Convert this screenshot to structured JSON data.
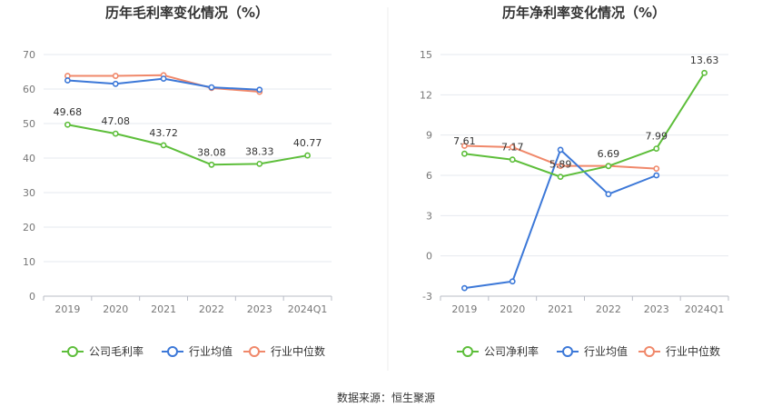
{
  "source_label": "数据来源：恒生聚源",
  "colors": {
    "company": "#5dbe3a",
    "industry_avg": "#3c78d8",
    "industry_median": "#f0886a",
    "grid": "#e6e9ef",
    "axis": "#b8bcc6"
  },
  "chart_data": [
    {
      "type": "line",
      "title": "历年毛利率变化情况（%）",
      "categories": [
        "2019",
        "2020",
        "2021",
        "2022",
        "2023",
        "2024Q1"
      ],
      "ylim": [
        0,
        70
      ],
      "yticks": [
        0,
        10,
        20,
        30,
        40,
        50,
        60,
        70
      ],
      "grid": true,
      "legend_position": "bottom",
      "series": [
        {
          "name": "公司毛利率",
          "key": "company",
          "values": [
            49.68,
            47.08,
            43.72,
            38.08,
            38.33,
            40.77
          ],
          "labels": [
            "49.68",
            "47.08",
            "43.72",
            "38.08",
            "38.33",
            "40.77"
          ]
        },
        {
          "name": "行业均值",
          "key": "industry_avg",
          "values": [
            62.5,
            61.5,
            63.0,
            60.5,
            59.8,
            null
          ]
        },
        {
          "name": "行业中位数",
          "key": "industry_median",
          "values": [
            63.8,
            63.8,
            64.0,
            60.3,
            59.2,
            null
          ]
        }
      ]
    },
    {
      "type": "line",
      "title": "历年净利率变化情况（%）",
      "categories": [
        "2019",
        "2020",
        "2021",
        "2022",
        "2023",
        "2024Q1"
      ],
      "ylim": [
        -3,
        15
      ],
      "yticks": [
        -3,
        0,
        3,
        6,
        9,
        12,
        15
      ],
      "grid": true,
      "legend_position": "bottom",
      "series": [
        {
          "name": "公司净利率",
          "key": "company",
          "values": [
            7.61,
            7.17,
            5.89,
            6.69,
            7.99,
            13.63
          ],
          "labels": [
            "7.61",
            "7.17",
            "5.89",
            "6.69",
            "7.99",
            "13.63"
          ]
        },
        {
          "name": "行业均值",
          "key": "industry_avg",
          "values": [
            -2.4,
            -1.9,
            7.9,
            4.6,
            6.0,
            null
          ]
        },
        {
          "name": "行业中位数",
          "key": "industry_median",
          "values": [
            8.2,
            8.1,
            6.7,
            6.7,
            6.5,
            null
          ]
        }
      ]
    }
  ]
}
